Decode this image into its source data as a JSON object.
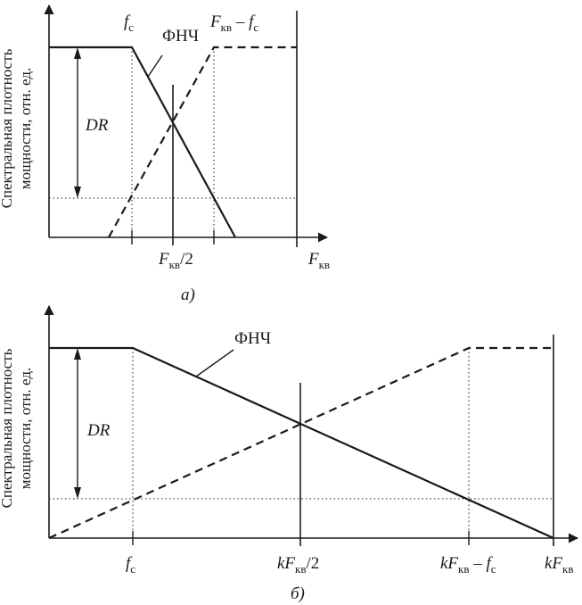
{
  "panel_a": {
    "y_axis_label_line1": "Спектральная плотность",
    "y_axis_label_line2": "мощности, отн. ед.",
    "lpf_label": "ФНЧ",
    "dr_label": "DR",
    "tick_fc": "f",
    "tick_fc_sub": "c",
    "tick_fkv_minus_fc_a": "F",
    "tick_fkv_minus_fc_sub": "кв",
    "tick_fkv_minus_fc_b": " – f",
    "tick_fkv_minus_fc_sub2": "c",
    "tick_half": "F",
    "tick_half_sub": "кв",
    "tick_half_tail": "/2",
    "tick_fkv": "F",
    "tick_fkv_sub": "кв",
    "caption": "а)"
  },
  "panel_b": {
    "y_axis_label_line1": "Спектральная плотность",
    "y_axis_label_line2": "мощности, отн. ед.",
    "lpf_label": "ФНЧ",
    "dr_label": "DR",
    "tick_fc": "f",
    "tick_fc_sub": "c",
    "tick_half_k": "kF",
    "tick_half_sub": "кв",
    "tick_half_tail": "/2",
    "tick_diff_k": "kF",
    "tick_diff_sub": "кв",
    "tick_diff_mid": " – f",
    "tick_diff_sub2": "c",
    "tick_fkv_k": "kF",
    "tick_fkv_sub": "кв",
    "caption": "б)"
  }
}
